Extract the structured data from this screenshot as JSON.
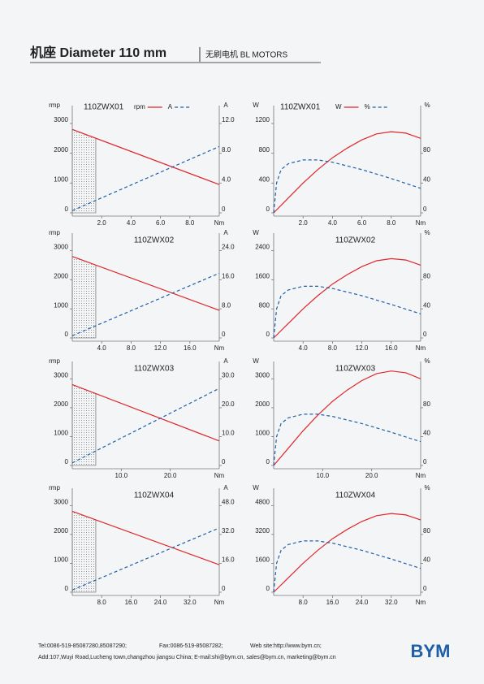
{
  "header": {
    "title": "机座 Diameter 110 mm",
    "subtitle": "无刷电机 BL MOTORS"
  },
  "chart_data": [
    {
      "type": "line",
      "title": "110ZWX01",
      "ylabel": "rmp",
      "y2label": "A",
      "xlabel": "Nm",
      "legend": true,
      "xlim": [
        0,
        10
      ],
      "xticks": [
        {
          "value": 2,
          "label": "2.0"
        },
        {
          "value": 4,
          "label": "4.0"
        },
        {
          "value": 6,
          "label": "6.0"
        },
        {
          "value": 8,
          "label": "8.0"
        }
      ],
      "ylim": [
        0,
        3600
      ],
      "yticks": [
        0,
        1000,
        2000,
        3000
      ],
      "y2lim": [
        0,
        14.4
      ],
      "y2ticks": [
        0,
        {
          "value": 4,
          "label": "4.0"
        },
        {
          "value": 8,
          "label": "8.0"
        },
        {
          "value": 12,
          "label": "12.0"
        }
      ],
      "shade_x": [
        0,
        1.6
      ],
      "series": [
        {
          "name": "rpm",
          "color": "#e0262b",
          "x": [
            0,
            10
          ],
          "values": [
            2800,
            950
          ]
        },
        {
          "name": "A",
          "color": "#1f5fa8",
          "dashed": true,
          "axis": "y2",
          "x": [
            0,
            10
          ],
          "values": [
            0.3,
            8.9
          ]
        }
      ]
    },
    {
      "type": "line",
      "title": "110ZWX01",
      "ylabel": "W",
      "y2label": "%",
      "xlabel": "Nm",
      "legend": true,
      "xlim": [
        0,
        10
      ],
      "xticks": [
        {
          "value": 2,
          "label": "2.0"
        },
        {
          "value": 4,
          "label": "4.0"
        },
        {
          "value": 6,
          "label": "6.0"
        },
        {
          "value": 8,
          "label": "8.0"
        }
      ],
      "ylim": [
        0,
        1440
      ],
      "yticks": [
        0,
        400,
        800,
        1200
      ],
      "y2lim": [
        0,
        144
      ],
      "y2ticks": [
        0,
        40,
        80
      ],
      "series": [
        {
          "name": "W",
          "color": "#e0262b",
          "x": [
            0,
            1,
            2,
            3,
            4,
            5,
            6,
            7,
            8,
            9,
            10
          ],
          "values": [
            0,
            200,
            400,
            580,
            740,
            870,
            980,
            1060,
            1090,
            1070,
            1000
          ]
        },
        {
          "name": "%",
          "color": "#1f5fa8",
          "dashed": true,
          "axis": "y2",
          "x": [
            0,
            0.2,
            0.5,
            1,
            2,
            3,
            4,
            6,
            8,
            10
          ],
          "values": [
            0,
            40,
            58,
            66,
            71,
            71,
            68,
            58,
            46,
            33
          ]
        }
      ]
    },
    {
      "type": "line",
      "title": "110ZWX02",
      "ylabel": "rmp",
      "y2label": "A",
      "xlabel": "Nm",
      "legend": false,
      "xlim": [
        0,
        20
      ],
      "xticks": [
        {
          "value": 4,
          "label": "4.0"
        },
        {
          "value": 8,
          "label": "8.0"
        },
        {
          "value": 12,
          "label": "12.0"
        },
        {
          "value": 16,
          "label": "16.0"
        }
      ],
      "ylim": [
        0,
        3600
      ],
      "yticks": [
        0,
        1000,
        2000,
        3000
      ],
      "y2lim": [
        0,
        28.8
      ],
      "y2ticks": [
        0,
        {
          "value": 8,
          "label": "8.0"
        },
        {
          "value": 16,
          "label": "16.0"
        },
        {
          "value": 24,
          "label": "24.0"
        }
      ],
      "shade_x": [
        0,
        3.2
      ],
      "series": [
        {
          "color": "#e0262b",
          "x": [
            0,
            20
          ],
          "values": [
            2800,
            950
          ]
        },
        {
          "color": "#1f5fa8",
          "dashed": true,
          "axis": "y2",
          "x": [
            0,
            20
          ],
          "values": [
            0.6,
            17.8
          ]
        }
      ]
    },
    {
      "type": "line",
      "title": "110ZWX02",
      "ylabel": "W",
      "y2label": "%",
      "xlabel": "Nm",
      "legend": false,
      "xlim": [
        0,
        20
      ],
      "xticks": [
        {
          "value": 4,
          "label": "4.0"
        },
        {
          "value": 8,
          "label": "8.0"
        },
        {
          "value": 12,
          "label": "12.0"
        },
        {
          "value": 16,
          "label": "16.0"
        }
      ],
      "ylim": [
        0,
        2880
      ],
      "yticks": [
        0,
        800,
        1600,
        2400
      ],
      "y2lim": [
        0,
        144
      ],
      "y2ticks": [
        0,
        40,
        80
      ],
      "series": [
        {
          "color": "#e0262b",
          "x": [
            0,
            2,
            4,
            6,
            8,
            10,
            12,
            14,
            16,
            18,
            20
          ],
          "values": [
            0,
            400,
            800,
            1160,
            1480,
            1740,
            1960,
            2120,
            2180,
            2140,
            2000
          ]
        },
        {
          "color": "#1f5fa8",
          "dashed": true,
          "axis": "y2",
          "x": [
            0,
            0.4,
            1,
            2,
            4,
            6,
            8,
            12,
            16,
            20
          ],
          "values": [
            0,
            40,
            58,
            66,
            71,
            71,
            68,
            58,
            46,
            33
          ]
        }
      ]
    },
    {
      "type": "line",
      "title": "110ZWX03",
      "ylabel": "rmp",
      "y2label": "A",
      "xlabel": "Nm",
      "legend": false,
      "xlim": [
        0,
        30
      ],
      "xticks": [
        {
          "value": 10,
          "label": "10.0"
        },
        {
          "value": 20,
          "label": "20.0"
        }
      ],
      "ylim": [
        0,
        3600
      ],
      "yticks": [
        0,
        1000,
        2000,
        3000
      ],
      "y2lim": [
        0,
        36
      ],
      "y2ticks": [
        0,
        {
          "value": 10,
          "label": "10.0"
        },
        {
          "value": 20,
          "label": "20.0"
        },
        {
          "value": 30,
          "label": "30.0"
        }
      ],
      "shade_x": [
        0,
        4.8
      ],
      "series": [
        {
          "color": "#e0262b",
          "x": [
            0,
            30
          ],
          "values": [
            2800,
            850
          ]
        },
        {
          "color": "#1f5fa8",
          "dashed": true,
          "axis": "y2",
          "x": [
            0,
            30
          ],
          "values": [
            0.9,
            26.7
          ]
        }
      ]
    },
    {
      "type": "line",
      "title": "110ZWX03",
      "ylabel": "W",
      "y2label": "%",
      "xlabel": "Nm",
      "legend": false,
      "xlim": [
        0,
        30
      ],
      "xticks": [
        {
          "value": 10,
          "label": "10.0"
        },
        {
          "value": 20,
          "label": "20.0"
        }
      ],
      "ylim": [
        0,
        3600
      ],
      "yticks": [
        0,
        1000,
        2000,
        3000
      ],
      "y2lim": [
        0,
        144
      ],
      "y2ticks": [
        0,
        40,
        80
      ],
      "series": [
        {
          "color": "#e0262b",
          "x": [
            0,
            3,
            6,
            9,
            12,
            15,
            18,
            21,
            24,
            27,
            30
          ],
          "values": [
            0,
            600,
            1200,
            1740,
            2220,
            2610,
            2940,
            3180,
            3270,
            3210,
            3000
          ]
        },
        {
          "color": "#1f5fa8",
          "dashed": true,
          "axis": "y2",
          "x": [
            0,
            0.6,
            1.5,
            3,
            6,
            9,
            12,
            18,
            24,
            30
          ],
          "values": [
            0,
            40,
            58,
            66,
            71,
            71,
            68,
            58,
            46,
            33
          ]
        }
      ]
    },
    {
      "type": "line",
      "title": "110ZWX04",
      "ylabel": "rmp",
      "y2label": "A",
      "xlabel": "Nm",
      "legend": false,
      "xlim": [
        0,
        40
      ],
      "xticks": [
        {
          "value": 8,
          "label": "8.0"
        },
        {
          "value": 16,
          "label": "16.0"
        },
        {
          "value": 24,
          "label": "24.0"
        },
        {
          "value": 32,
          "label": "32.0"
        }
      ],
      "ylim": [
        0,
        3600
      ],
      "yticks": [
        0,
        1000,
        2000,
        3000
      ],
      "y2lim": [
        0,
        57.6
      ],
      "y2ticks": [
        0,
        {
          "value": 16,
          "label": "16.0"
        },
        {
          "value": 32,
          "label": "32.0"
        },
        {
          "value": 48,
          "label": "48.0"
        }
      ],
      "shade_x": [
        0,
        6.4
      ],
      "series": [
        {
          "color": "#e0262b",
          "x": [
            0,
            40
          ],
          "values": [
            2800,
            950
          ]
        },
        {
          "color": "#1f5fa8",
          "dashed": true,
          "axis": "y2",
          "x": [
            0,
            40
          ],
          "values": [
            1.2,
            35.6
          ]
        }
      ]
    },
    {
      "type": "line",
      "title": "110ZWX04",
      "ylabel": "W",
      "y2label": "%",
      "xlabel": "Nm",
      "legend": false,
      "xlim": [
        0,
        40
      ],
      "xticks": [
        {
          "value": 8,
          "label": "8.0"
        },
        {
          "value": 16,
          "label": "16.0"
        },
        {
          "value": 24,
          "label": "24.0"
        },
        {
          "value": 32,
          "label": "32.0"
        }
      ],
      "ylim": [
        0,
        5760
      ],
      "yticks": [
        0,
        1600,
        3200,
        4800
      ],
      "y2lim": [
        0,
        144
      ],
      "y2ticks": [
        0,
        40,
        80
      ],
      "series": [
        {
          "color": "#e0262b",
          "x": [
            0,
            4,
            8,
            12,
            16,
            20,
            24,
            28,
            32,
            36,
            40
          ],
          "values": [
            0,
            800,
            1600,
            2320,
            2960,
            3480,
            3920,
            4240,
            4360,
            4280,
            4000
          ]
        },
        {
          "color": "#1f5fa8",
          "dashed": true,
          "axis": "y2",
          "x": [
            0,
            0.8,
            2,
            4,
            8,
            12,
            16,
            24,
            32,
            40
          ],
          "values": [
            0,
            40,
            58,
            66,
            71,
            71,
            68,
            58,
            46,
            33
          ]
        }
      ]
    }
  ],
  "footer": {
    "tel": "Tel:0086-519-85087280,85087290;",
    "fax": "Fax:0086-519-85087282;",
    "web": "Web site:http://www.bym.cn;",
    "address": "Add:107,Wuyi Road,Lucheng town,changzhou jiangsu China;  E-mail:shi@bym.cn, sales@bym.cn, marketing@bym.cn",
    "logo": "BYM"
  }
}
